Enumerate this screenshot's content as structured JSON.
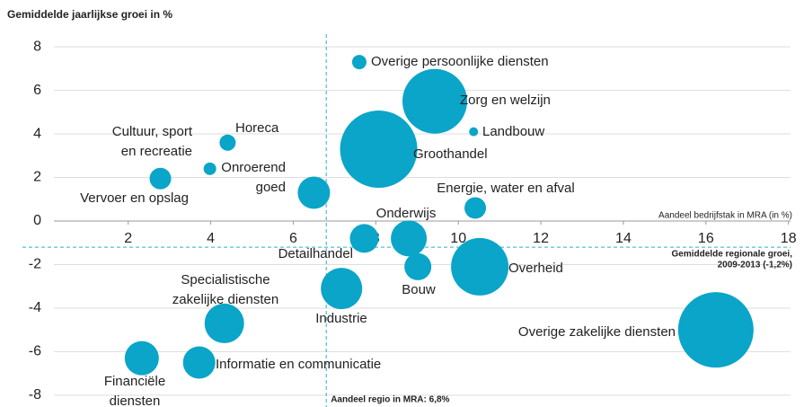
{
  "chart_data": {
    "type": "bubble",
    "ylabel": "Gemiddelde jaarlijkse groei in %",
    "xlabel": "Aandeel bedrijfstak in MRA (in %)",
    "color": "#0aa5c8",
    "x": [
      7.6,
      9.43,
      10.37,
      4.41,
      3.98,
      8.07,
      2.78,
      6.5,
      10.41,
      7.72,
      8.8,
      9.02,
      10.52,
      7.17,
      4.33,
      16.24,
      2.33,
      3.72
    ],
    "y": [
      7.3,
      5.5,
      4.1,
      3.6,
      2.4,
      3.3,
      1.95,
      1.3,
      0.6,
      -0.8,
      -0.8,
      -2.1,
      -2.1,
      -3.1,
      -4.7,
      -5.0,
      -6.3,
      -6.5
    ],
    "sizes": [
      64,
      1296,
      25,
      81,
      49,
      1849,
      144,
      324,
      144,
      256,
      400,
      225,
      1024,
      529,
      484,
      1764,
      361,
      324
    ],
    "labels": [
      [
        "Overige persoonlijke diensten"
      ],
      [
        "Zorg en welzijn"
      ],
      [
        "Landbouw"
      ],
      [
        "Horeca"
      ],
      [
        "Cultuur, sport",
        "en recreatie"
      ],
      [
        "Groothandel"
      ],
      [
        "Vervoer en opslag"
      ],
      [
        "Onroerend",
        "goed"
      ],
      [
        "Energie, water en afval"
      ],
      [
        "Detailhandel"
      ],
      [
        "Onderwijs"
      ],
      [
        "Bouw"
      ],
      [
        "Overheid"
      ],
      [
        "Industrie"
      ],
      [
        "Specialistische",
        "zakelijke diensten"
      ],
      [
        "Overige zakelijke diensten"
      ],
      [
        "Financiële",
        "diensten"
      ],
      [
        "Informatie en communicatie"
      ]
    ],
    "xlim": [
      0.2,
      18.05
    ],
    "ylim": [
      -8.5,
      8.5
    ],
    "xticks": [
      2,
      4,
      6,
      8,
      10,
      12,
      14,
      16,
      18
    ],
    "yticks": [
      -8,
      -6,
      -4,
      -2,
      0,
      2,
      4,
      6,
      8
    ],
    "grid": true,
    "vline": {
      "value": 6.8,
      "label": "Aandeel regio in MRA: 6,8%"
    },
    "hline": {
      "value": -1.2,
      "label": [
        "Gemiddelde regionale groei,",
        "2009-2013 (-1,2%)"
      ]
    }
  }
}
